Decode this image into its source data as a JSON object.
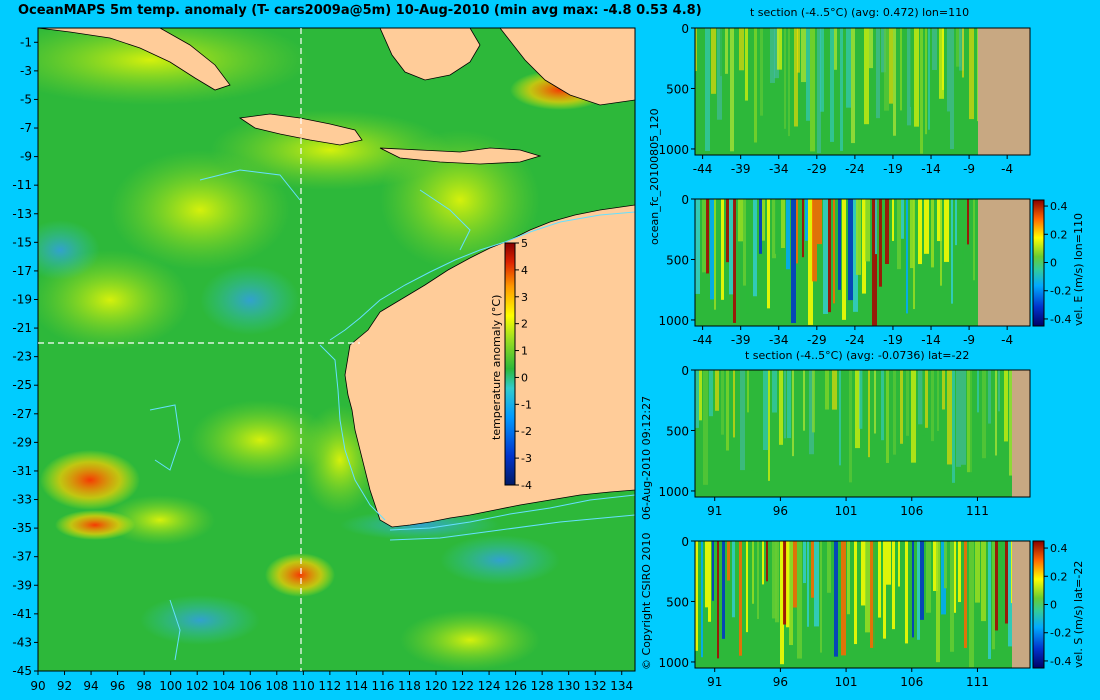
{
  "header": {
    "title": "OceanMAPS 5m temp. anomaly (T- cars2009a@5m) 10-Aug-2010 (min avg max: -4.8 0.53 4.8)",
    "copyright": "© Copyright CSIRO 2010",
    "timestamp": "06-Aug-2010 09:12:27",
    "run_id": "ocean_fc_20100805_120"
  },
  "colors": {
    "background": "#00ccff",
    "land": "#ffcc99",
    "section_land": "#c8a882",
    "ocean_base": "#2db83a",
    "contour": "#66e0ff"
  },
  "colorbar_main": {
    "label": "temperature anomaly (°C)",
    "ticks": [
      "5",
      "4",
      "3",
      "2",
      "1",
      "0",
      "-1",
      "-2",
      "-3",
      "-4"
    ]
  },
  "chart_data": [
    {
      "type": "heatmap",
      "name": "map",
      "title": "OceanMAPS 5m temp. anomaly (T- cars2009a@5m) 10-Aug-2010 (min avg max: -4.8 0.53 4.8)",
      "x_ticks": [
        "90",
        "92",
        "94",
        "96",
        "98",
        "100",
        "102",
        "104",
        "106",
        "108",
        "110",
        "112",
        "114",
        "116",
        "118",
        "120",
        "122",
        "124",
        "126",
        "128",
        "130",
        "132",
        "134"
      ],
      "y_ticks": [
        "-1",
        "-3",
        "-5",
        "-7",
        "-9",
        "-11",
        "-13",
        "-15",
        "-17",
        "-19",
        "-21",
        "-23",
        "-25",
        "-27",
        "-29",
        "-31",
        "-33",
        "-35",
        "-37",
        "-39",
        "-41",
        "-43",
        "-45"
      ],
      "xlim": [
        90,
        135
      ],
      "ylim": [
        -45,
        0
      ],
      "crosshair": {
        "lon": 110,
        "lat": -22
      },
      "stats": {
        "min": -4.8,
        "avg": 0.53,
        "max": 4.8
      }
    },
    {
      "type": "heatmap",
      "name": "t-section-lon",
      "title": "t section (-4..5°C) (avg: 0.472) lon=110",
      "x_ticks": [
        "-44",
        "-39",
        "-34",
        "-29",
        "-24",
        "-19",
        "-14",
        "-9",
        "-4"
      ],
      "y_ticks": [
        "0",
        "500",
        "1000"
      ],
      "xlim": [
        -45,
        -1
      ],
      "ylim": [
        1050,
        0
      ],
      "avg": 0.472
    },
    {
      "type": "heatmap",
      "name": "vel-e-section",
      "ylabel": "vel. E (m/s) lon=110",
      "x_ticks": [
        "-44",
        "-39",
        "-34",
        "-29",
        "-24",
        "-19",
        "-14",
        "-9",
        "-4"
      ],
      "y_ticks": [
        "0",
        "500",
        "1000"
      ],
      "colorbar_ticks": [
        "0.4",
        "0.2",
        "0",
        "-0.2",
        "-0.4"
      ],
      "xlim": [
        -45,
        -1
      ],
      "ylim": [
        1050,
        0
      ]
    },
    {
      "type": "heatmap",
      "name": "t-section-lat",
      "title": "t section (-4..5°C) (avg: -0.0736) lat=-22",
      "x_ticks": [
        "91",
        "96",
        "101",
        "106",
        "111"
      ],
      "y_ticks": [
        "0",
        "500",
        "1000"
      ],
      "xlim": [
        89.5,
        115
      ],
      "ylim": [
        1050,
        0
      ],
      "avg": -0.0736
    },
    {
      "type": "heatmap",
      "name": "vel-s-section",
      "ylabel": "vel. S (m/s) lat=-22",
      "x_ticks": [
        "91",
        "96",
        "101",
        "106",
        "111"
      ],
      "y_ticks": [
        "0",
        "500",
        "1000"
      ],
      "colorbar_ticks": [
        "0.4",
        "0.2",
        "0",
        "-0.2",
        "-0.4"
      ],
      "xlim": [
        89.5,
        115
      ],
      "ylim": [
        1050,
        0
      ]
    }
  ]
}
